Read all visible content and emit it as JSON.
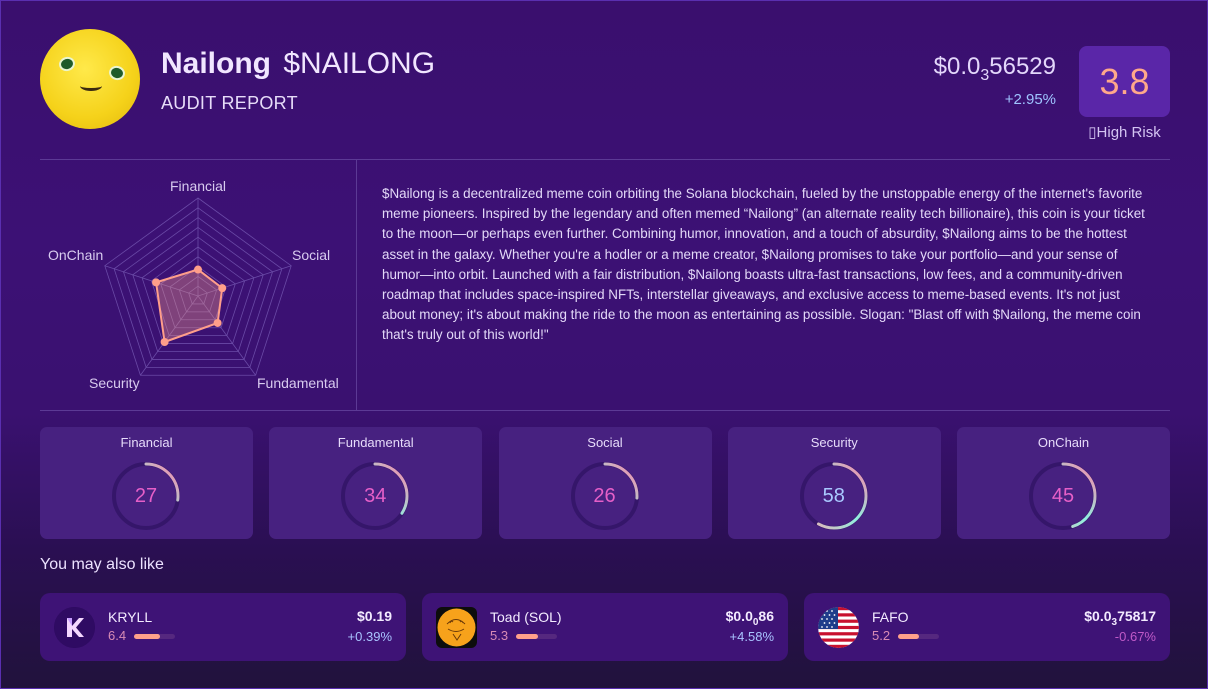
{
  "header": {
    "name": "Nailong",
    "ticker": "$NAILONG",
    "subtitle": "AUDIT REPORT",
    "price_prefix": "$0.0",
    "price_zeros": "3",
    "price_digits": "56529",
    "price_change": "+2.95%",
    "score": "3.8",
    "risk_label": "▯High Risk",
    "colors": {
      "score": "#ffa88a",
      "change_positive": "#9fc4ff"
    }
  },
  "chart_data": {
    "type": "radar",
    "title": "",
    "axes": [
      "Financial",
      "Social",
      "Fundamental",
      "Security",
      "OnChain"
    ],
    "values": [
      27,
      26,
      34,
      58,
      45
    ],
    "range": [
      0,
      100
    ],
    "grid_levels": 10,
    "series_color": "#ff9e8a"
  },
  "description": "$Nailong is a decentralized meme coin orbiting the Solana blockchain, fueled by the unstoppable energy of the internet's favorite meme pioneers. Inspired by the legendary and often memed “Nailong” (an alternate reality tech billionaire), this coin is your ticket to the moon—or perhaps even further. Combining humor, innovation, and a touch of absurdity, $Nailong aims to be the hottest asset in the galaxy. Whether you're a hodler or a meme creator, $Nailong promises to take your portfolio—and your sense of humor—into orbit. Launched with a fair distribution, $Nailong boasts ultra-fast transactions, low fees, and a community-driven roadmap that includes space-inspired NFTs, interstellar giveaways, and exclusive access to meme-based events. It's not just about money; it's about making the ride to the moon as entertaining as possible. Slogan: \"Blast off with $Nailong, the meme coin that's truly out of this world!\"",
  "scores": [
    {
      "label": "Financial",
      "value": "27",
      "pct": 27,
      "color": "#e65fc8"
    },
    {
      "label": "Fundamental",
      "value": "34",
      "pct": 34,
      "color": "#e65fc8"
    },
    {
      "label": "Social",
      "value": "26",
      "pct": 26,
      "color": "#e65fc8"
    },
    {
      "label": "Security",
      "value": "58",
      "pct": 58,
      "color": "#a9c9ff"
    },
    {
      "label": "OnChain",
      "value": "45",
      "pct": 45,
      "color": "#e65fc8"
    }
  ],
  "recommendations": {
    "title": "You may also like",
    "items": [
      {
        "name": "KRYLL",
        "score": "6.4",
        "pct": 64,
        "price": "$0.19",
        "price_sub": "",
        "price_tail": "",
        "change": "+0.39%",
        "change_color": "#a9c4ff",
        "icon": "kryll-logo-icon"
      },
      {
        "name": "Toad (SOL)",
        "score": "5.3",
        "pct": 53,
        "price": "$0.0",
        "price_sub": "0",
        "price_tail": "86",
        "change": "+4.58%",
        "change_color": "#a9c4ff",
        "icon": "toad-logo-icon"
      },
      {
        "name": "FAFO",
        "score": "5.2",
        "pct": 52,
        "price": "$0.0",
        "price_sub": "3",
        "price_tail": "75817",
        "change": "-0.67%",
        "change_color": "#c05ac8",
        "icon": "us-flag-icon"
      }
    ]
  }
}
